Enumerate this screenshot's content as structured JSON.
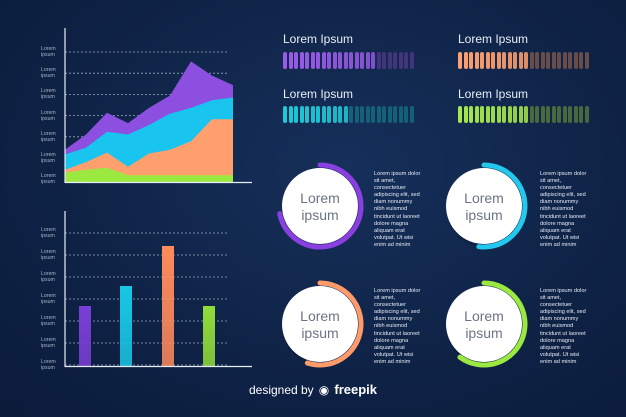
{
  "chart_data": [
    {
      "type": "area",
      "x": [
        0,
        1,
        2,
        3,
        4,
        5,
        6,
        7,
        8
      ],
      "series": [
        {
          "values": [
            3.4,
            5.0,
            7.3,
            6.2,
            7.8,
            9.1,
            12.7,
            11.2,
            10.2
          ],
          "color": "#8c4fe0"
        },
        {
          "values": [
            2.9,
            3.6,
            5.3,
            5.0,
            6.0,
            7.2,
            7.8,
            8.6,
            8.9
          ],
          "color": "#19c4ee"
        },
        {
          "values": [
            1.3,
            2.1,
            3.1,
            1.6,
            3.0,
            3.4,
            4.3,
            6.6,
            6.6
          ],
          "color": "#ff9f6e"
        },
        {
          "values": [
            1.0,
            1.3,
            1.5,
            0.7,
            0.7,
            0.7,
            0.7,
            0.7,
            0.7
          ],
          "color": "#9be840"
        }
      ],
      "ylim": [
        0,
        16
      ],
      "tick_labels": [
        "Lorem ipsum",
        "Lorem ipsum",
        "Lorem ipsum",
        "Lorem ipsum",
        "Lorem ipsum",
        "Lorem ipsum",
        "Lorem ipsum"
      ],
      "grid": true
    },
    {
      "type": "bar",
      "categories": [
        "",
        "",
        "",
        ""
      ],
      "values": [
        3.0,
        4.0,
        6.0,
        3.0
      ],
      "colors": [
        "#7a3fd6",
        "#18c7e6",
        "#ff8a5c",
        "#8fdc3a"
      ],
      "ylim": [
        0,
        7
      ],
      "tick_labels": [
        "Lorem ipsum",
        "Lorem ipsum",
        "Lorem ipsum",
        "Lorem ipsum",
        "Lorem ipsum",
        "Lorem ipsum",
        "Lorem ipsum"
      ],
      "grid": true
    }
  ],
  "progress_bars": [
    {
      "title": "Lorem Ipsum",
      "color": "#9b5be8",
      "filled": 0.7,
      "segments": 24
    },
    {
      "title": "Lorem Ipsum",
      "color": "#ff9f6e",
      "filled": 0.55,
      "segments": 24
    },
    {
      "title": "Lorem Ipsum",
      "color": "#1ec9d6",
      "filled": 0.5,
      "segments": 24
    },
    {
      "title": "Lorem Ipsum",
      "color": "#a6e84a",
      "filled": 0.55,
      "segments": 24
    }
  ],
  "circles": [
    {
      "label_line1": "Lorem",
      "label_line2": "ipsum",
      "color": "#8a3fe0",
      "value": 0.72
    },
    {
      "label_line1": "Lorem",
      "label_line2": "ipsum",
      "color": "#22c8ee",
      "value": 0.52
    },
    {
      "label_line1": "Lorem",
      "label_line2": "ipsum",
      "color": "#ff9a6a",
      "value": 0.55
    },
    {
      "label_line1": "Lorem",
      "label_line2": "ipsum",
      "color": "#9be840",
      "value": 0.6
    }
  ],
  "paragraph_lines": [
    "Lorem ipsum dolor",
    "sit amet,",
    "consectetuer",
    "adipiscing elit, sed",
    "diam nonummy",
    "nibh euismod",
    "tincidunt ut laoreet",
    "dolore magna",
    "aliquam erat",
    "volutpat. Ut wisi",
    "enim ad minim"
  ],
  "footer": {
    "prefix": "designed by",
    "brand": "freepik"
  }
}
